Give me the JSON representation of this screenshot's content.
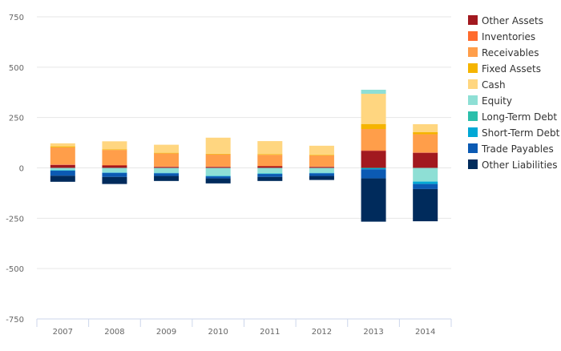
{
  "chart_data": {
    "type": "bar",
    "stacked": true,
    "title": "",
    "xlabel": "",
    "ylabel": "",
    "ylim": [
      -750,
      750
    ],
    "yticks": [
      750,
      500,
      250,
      0,
      -250,
      -500,
      -750
    ],
    "ytick_labels": [
      "750",
      "500",
      "250",
      "0",
      "-250",
      "-500",
      "-750"
    ],
    "grid": true,
    "legend_position": "right",
    "categories": [
      "2007",
      "2008",
      "2009",
      "2010",
      "2011",
      "2012",
      "2013",
      "2014"
    ],
    "series": [
      {
        "name": "Other Assets",
        "color": "#a2191f",
        "values": [
          15,
          12,
          5,
          5,
          8,
          5,
          85,
          75
        ]
      },
      {
        "name": "Inventories",
        "color": "#ff6b2d",
        "values": [
          2,
          2,
          2,
          2,
          2,
          2,
          3,
          2
        ]
      },
      {
        "name": "Receivables",
        "color": "#ff9e4a",
        "values": [
          85,
          75,
          65,
          60,
          55,
          55,
          105,
          90
        ]
      },
      {
        "name": "Fixed Assets",
        "color": "#f5b400",
        "values": [
          5,
          3,
          3,
          3,
          3,
          3,
          25,
          10
        ]
      },
      {
        "name": "Cash",
        "color": "#ffd680",
        "values": [
          15,
          40,
          40,
          80,
          65,
          45,
          150,
          40
        ]
      },
      {
        "name": "Equity",
        "color": "#8edfd5",
        "values": [
          -12,
          -23,
          -25,
          -40,
          -28,
          -25,
          20,
          -68
        ]
      },
      {
        "name": "Long-Term Debt",
        "color": "#2bbfab",
        "values": [
          0,
          0,
          0,
          0,
          0,
          0,
          -2,
          0
        ]
      },
      {
        "name": "Short-Term Debt",
        "color": "#00a8d5",
        "values": [
          -2,
          -2,
          -2,
          -2,
          -2,
          -2,
          -5,
          -12
        ]
      },
      {
        "name": "Trade Payables",
        "color": "#0b5ab3",
        "values": [
          -25,
          -20,
          -13,
          -10,
          -15,
          -13,
          -45,
          -25
        ]
      },
      {
        "name": "Other Liabilities",
        "color": "#002b5c",
        "values": [
          -30,
          -35,
          -25,
          -25,
          -20,
          -20,
          -215,
          -160
        ]
      }
    ]
  }
}
